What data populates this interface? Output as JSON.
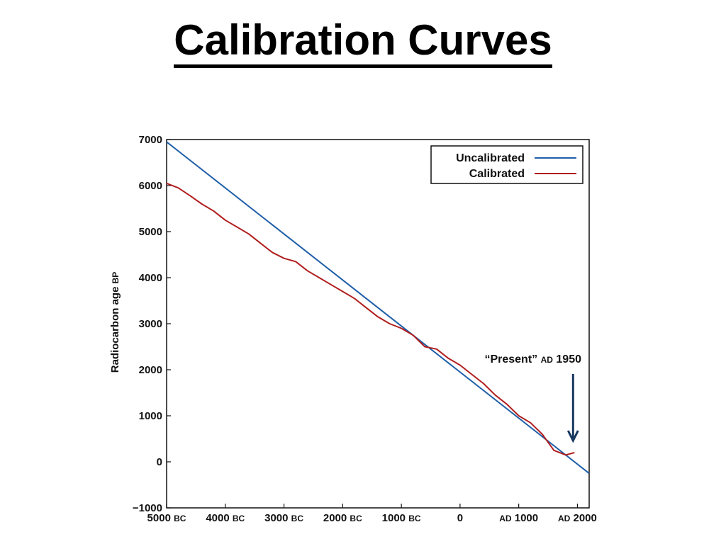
{
  "slide": {
    "title": "Calibration Curves"
  },
  "chart_data": {
    "type": "line",
    "title": "",
    "xlabel": "",
    "ylabel": "Radiocarbon age BP",
    "ylabel_main": "Radiocarbon age ",
    "ylabel_unit": "BP",
    "xlim": [
      -5000,
      2200
    ],
    "ylim": [
      -1000,
      7000
    ],
    "x_ticks": [
      {
        "value": -5000,
        "num": "5000",
        "era": "BC",
        "era_first": false
      },
      {
        "value": -4000,
        "num": "4000",
        "era": "BC",
        "era_first": false
      },
      {
        "value": -3000,
        "num": "3000",
        "era": "BC",
        "era_first": false
      },
      {
        "value": -2000,
        "num": "2000",
        "era": "BC",
        "era_first": false
      },
      {
        "value": -1000,
        "num": "1000",
        "era": "BC",
        "era_first": false
      },
      {
        "value": 0,
        "num": "0",
        "era": "",
        "era_first": false
      },
      {
        "value": 1000,
        "num": "1000",
        "era": "AD",
        "era_first": true
      },
      {
        "value": 2000,
        "num": "2000",
        "era": "AD",
        "era_first": true
      }
    ],
    "y_ticks": [
      {
        "value": 7000,
        "label": "7000"
      },
      {
        "value": 6000,
        "label": "6000"
      },
      {
        "value": 5000,
        "label": "5000"
      },
      {
        "value": 4000,
        "label": "4000"
      },
      {
        "value": 3000,
        "label": "3000"
      },
      {
        "value": 2000,
        "label": "2000"
      },
      {
        "value": 1000,
        "label": "1000"
      },
      {
        "value": 0,
        "label": "0"
      },
      {
        "value": -1000,
        "label": "−1000"
      }
    ],
    "grid": false,
    "legend_position": "top-right",
    "series": [
      {
        "name": "Uncalibrated",
        "color": "#1f5fa8",
        "x": [
          -5000,
          2200
        ],
        "y": [
          6950,
          -250
        ]
      },
      {
        "name": "Calibrated",
        "color": "#b01e1e",
        "x": [
          -5000,
          -4800,
          -4600,
          -4400,
          -4200,
          -4000,
          -3800,
          -3600,
          -3400,
          -3200,
          -3000,
          -2800,
          -2600,
          -2400,
          -2200,
          -2000,
          -1800,
          -1600,
          -1400,
          -1200,
          -1000,
          -800,
          -600,
          -400,
          -200,
          0,
          200,
          400,
          600,
          800,
          1000,
          1200,
          1400,
          1600,
          1800,
          1950
        ],
        "y": [
          6050,
          5950,
          5780,
          5600,
          5450,
          5250,
          5100,
          4950,
          4750,
          4550,
          4420,
          4350,
          4150,
          4000,
          3850,
          3700,
          3550,
          3350,
          3150,
          3000,
          2900,
          2750,
          2500,
          2450,
          2250,
          2100,
          1900,
          1700,
          1450,
          1250,
          1000,
          850,
          600,
          250,
          150,
          200
        ]
      }
    ],
    "annotation": {
      "text_quote": "“Present”",
      "text_era": "AD",
      "text_year": "1950",
      "arrow_x": 1950,
      "arrow_y_from": 1900,
      "arrow_y_to": 400,
      "arrow_color": "#17375e"
    }
  }
}
